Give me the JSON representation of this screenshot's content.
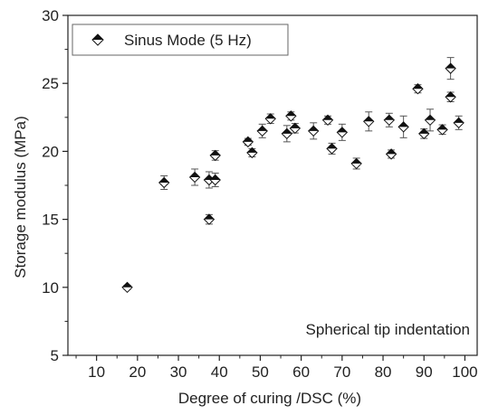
{
  "chart_data": {
    "type": "scatter",
    "xlabel": "Degree of curing /DSC (%)",
    "ylabel": "Storage modulus (MPa)",
    "xlim": [
      3,
      103
    ],
    "ylim": [
      5,
      30
    ],
    "xticks": [
      10,
      20,
      30,
      40,
      50,
      60,
      70,
      80,
      90,
      100
    ],
    "yticks": [
      5,
      10,
      15,
      20,
      25,
      30
    ],
    "grid": false,
    "legend_position": "top-left",
    "annotation": "Spherical tip indentation",
    "series": [
      {
        "name": "Sinus Mode (5 Hz)",
        "marker": "half-filled-diamond",
        "color": "#111111",
        "points": [
          {
            "x": 17.5,
            "y": 10.0,
            "err": 0.15
          },
          {
            "x": 26.5,
            "y": 17.7,
            "err": 0.5
          },
          {
            "x": 34.0,
            "y": 18.1,
            "err": 0.6
          },
          {
            "x": 37.5,
            "y": 17.9,
            "err": 0.6
          },
          {
            "x": 37.5,
            "y": 15.0,
            "err": 0.35
          },
          {
            "x": 39.0,
            "y": 17.9,
            "err": 0.5
          },
          {
            "x": 39.0,
            "y": 19.7,
            "err": 0.35
          },
          {
            "x": 47.0,
            "y": 20.7,
            "err": 0.25
          },
          {
            "x": 48.0,
            "y": 19.9,
            "err": 0.3
          },
          {
            "x": 50.5,
            "y": 21.5,
            "err": 0.5
          },
          {
            "x": 52.5,
            "y": 22.4,
            "err": 0.35
          },
          {
            "x": 56.5,
            "y": 21.3,
            "err": 0.6
          },
          {
            "x": 57.5,
            "y": 22.6,
            "err": 0.3
          },
          {
            "x": 58.5,
            "y": 21.7,
            "err": 0.35
          },
          {
            "x": 63.0,
            "y": 21.5,
            "err": 0.6
          },
          {
            "x": 66.5,
            "y": 22.3,
            "err": 0.3
          },
          {
            "x": 67.5,
            "y": 20.2,
            "err": 0.4
          },
          {
            "x": 70.0,
            "y": 21.4,
            "err": 0.6
          },
          {
            "x": 73.5,
            "y": 19.1,
            "err": 0.4
          },
          {
            "x": 76.5,
            "y": 22.2,
            "err": 0.7
          },
          {
            "x": 81.5,
            "y": 22.3,
            "err": 0.5
          },
          {
            "x": 82.0,
            "y": 19.8,
            "err": 0.3
          },
          {
            "x": 85.0,
            "y": 21.8,
            "err": 0.8
          },
          {
            "x": 88.5,
            "y": 24.6,
            "err": 0.3
          },
          {
            "x": 90.0,
            "y": 21.3,
            "err": 0.35
          },
          {
            "x": 91.5,
            "y": 22.3,
            "err": 0.8
          },
          {
            "x": 94.5,
            "y": 21.6,
            "err": 0.35
          },
          {
            "x": 96.5,
            "y": 24.0,
            "err": 0.35
          },
          {
            "x": 96.5,
            "y": 26.1,
            "err": 0.8
          },
          {
            "x": 98.5,
            "y": 22.1,
            "err": 0.5
          }
        ]
      }
    ]
  }
}
